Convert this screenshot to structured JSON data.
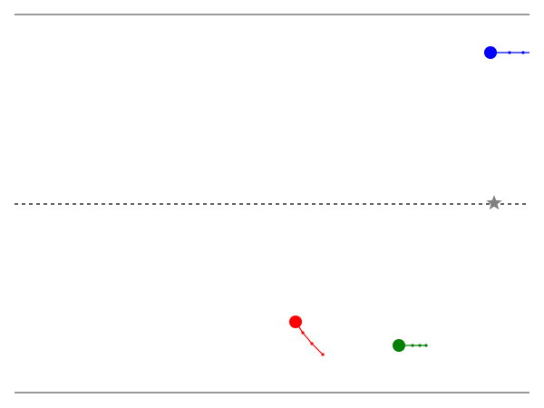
{
  "scene": {
    "background": "#ffffff",
    "boundary_color": "#333333",
    "midline_color": "#333333",
    "target": {
      "icon": "star-icon",
      "color": "#808080"
    },
    "agents": [
      {
        "id": "blue",
        "color": "#0000ff",
        "trail_points": 3
      },
      {
        "id": "red",
        "color": "#ff0000",
        "trail_points": 3
      },
      {
        "id": "green",
        "color": "#008000",
        "trail_points": 3
      }
    ]
  }
}
